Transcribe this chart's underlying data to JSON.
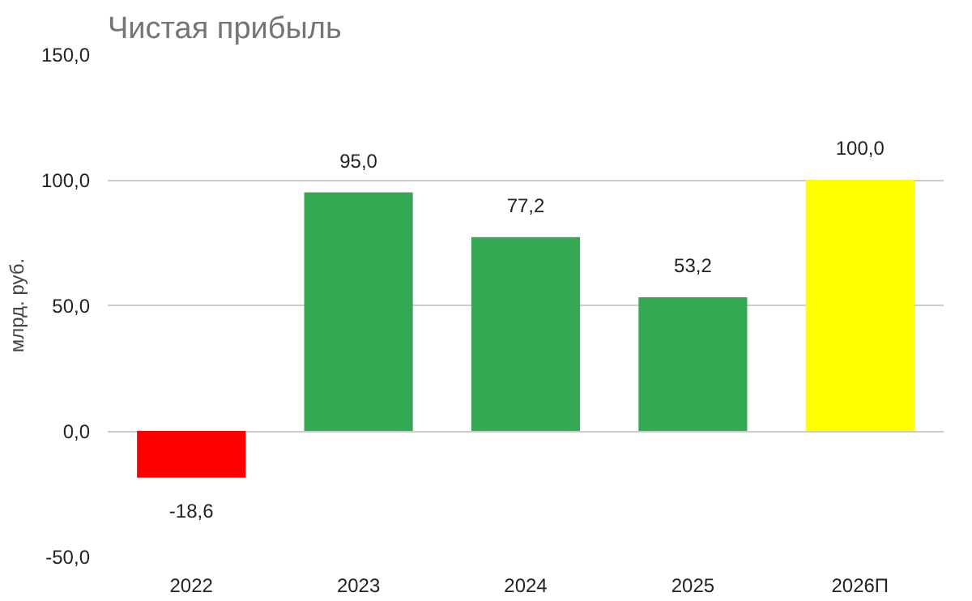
{
  "chart_data": {
    "type": "bar",
    "title": "Чистая прибыль",
    "ylabel": "млрд. руб.",
    "categories": [
      "2022",
      "2023",
      "2024",
      "2025",
      "2026П"
    ],
    "values": [
      -18.6,
      95.0,
      77.2,
      53.2,
      100.0
    ],
    "colors": [
      "#ff0000",
      "#34a853",
      "#34a853",
      "#34a853",
      "#ffff00"
    ],
    "value_labels": [
      "-18,6",
      "95,0",
      "77,2",
      "53,2",
      "100,0"
    ],
    "ylim": [
      -50,
      150
    ],
    "yticks": [
      {
        "value": -50,
        "label": "-50,0"
      },
      {
        "value": 0,
        "label": "0,0"
      },
      {
        "value": 50,
        "label": "50,0"
      },
      {
        "value": 100,
        "label": "100,0"
      },
      {
        "value": 150,
        "label": "150,0"
      }
    ],
    "grid": "y"
  }
}
